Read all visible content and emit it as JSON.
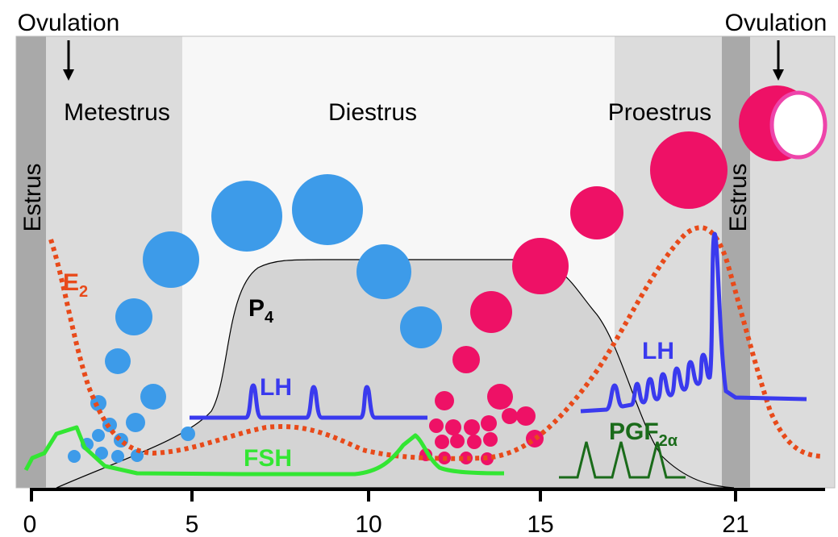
{
  "ovulation_left": "Ovulation",
  "ovulation_right": "Ovulation",
  "phases": {
    "metestrus": "Metestrus",
    "diestrus": "Diestrus",
    "proestrus": "Proestrus",
    "estrus_left": "Estrus",
    "estrus_right": "Estrus"
  },
  "hormones": {
    "e2": {
      "base": "E",
      "sub": "2"
    },
    "p4": {
      "base": "P",
      "sub": "4"
    },
    "lh_left": "LH",
    "lh_right": "LH",
    "fsh": "FSH",
    "pgf": {
      "base": "PGF",
      "sub": "2α"
    }
  },
  "axis": {
    "ticks": [
      "0",
      "5",
      "10",
      "15",
      "21"
    ]
  }
}
